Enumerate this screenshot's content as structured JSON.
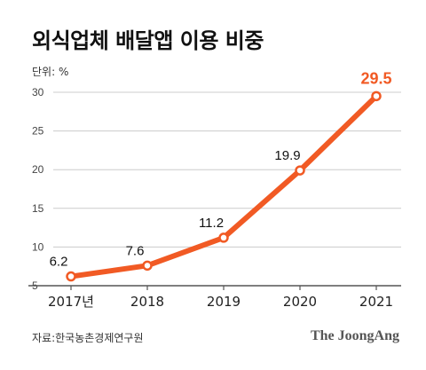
{
  "title": "외식업체 배달앱 이용 비중",
  "unit_label": "단위: %",
  "source": "자료:한국농촌경제연구원",
  "brand": "The JoongAng",
  "colors": {
    "line": "#f15a24",
    "grid": "#cccccc",
    "axis": "#555555"
  },
  "chart_data": {
    "type": "line",
    "title": "외식업체 배달앱 이용 비중",
    "xlabel": "",
    "ylabel": "",
    "unit": "%",
    "categories": [
      "2017년",
      "2018",
      "2019",
      "2020",
      "2021"
    ],
    "series": [
      {
        "values": [
          6.2,
          7.6,
          11.2,
          19.9,
          29.5
        ]
      }
    ],
    "data_labels": [
      "6.2",
      "7.6",
      "11.2",
      "19.9",
      "29.5"
    ],
    "highlight_index": 4,
    "ylim": [
      5,
      30
    ],
    "yticks": [
      5,
      10,
      15,
      20,
      25,
      30
    ],
    "grid": true
  }
}
